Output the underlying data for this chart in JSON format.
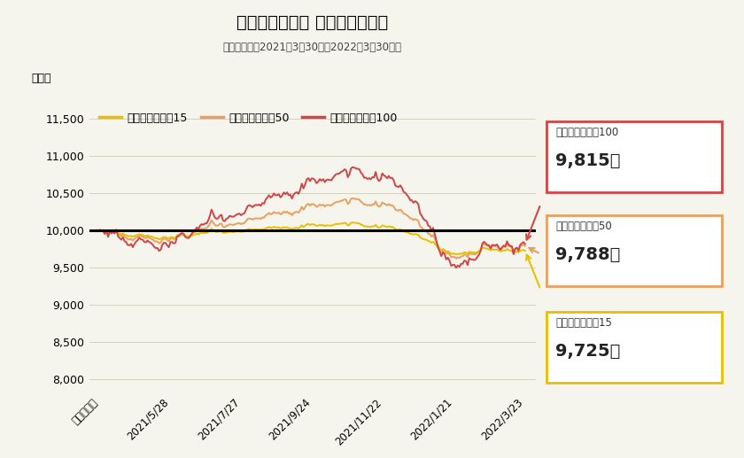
{
  "title": "まるごとひふみ 基準価額の推移",
  "subtitle": "（運用開始日2021年3月30日〜2022年3月30日）",
  "ylabel": "（円）",
  "xtick_labels": [
    "運用開始時",
    "2021/5/28",
    "2021/7/27",
    "2021/9/24",
    "2021/11/22",
    "2022/1/21",
    "2022/3/23"
  ],
  "ytick_values": [
    8000,
    8500,
    9000,
    9500,
    10000,
    10500,
    11000,
    11500
  ],
  "ylim": [
    7800,
    11800
  ],
  "color_15": "#E8C000",
  "color_50": "#E8A060",
  "color_100": "#D04545",
  "baseline": 10000,
  "legend_labels": [
    "まるごとひふみ15",
    "まるごとひふみ50",
    "まるごとひふみ100"
  ],
  "ann_100_label": "まるごとひふみ100",
  "ann_100_value": "9,815円",
  "ann_50_label": "まるごとひふみ50",
  "ann_50_value": "9,788円",
  "ann_15_label": "まるごとひふみ15",
  "ann_15_value": "9,725円",
  "background_color": "#F5F5EE",
  "line_width": 1.4
}
